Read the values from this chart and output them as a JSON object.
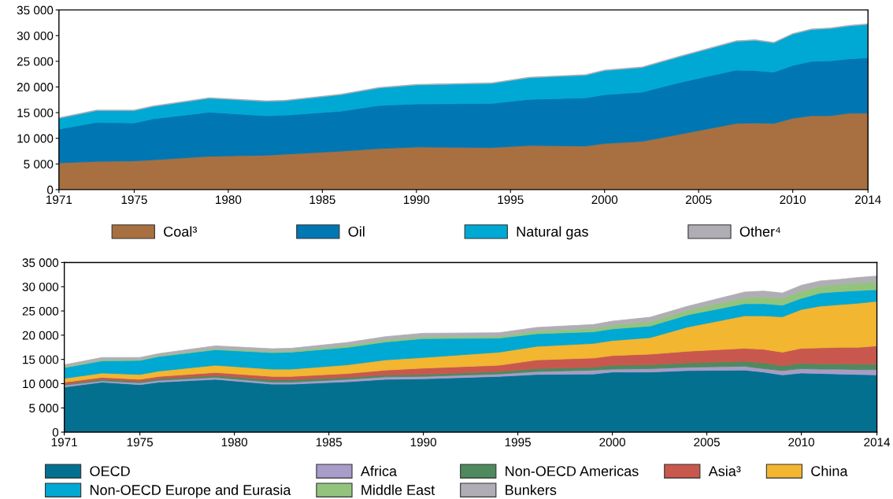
{
  "chart_data": [
    {
      "type": "area",
      "stacked": true,
      "legend": "bottom",
      "x": [
        1971,
        1973,
        1975,
        1976,
        1979,
        1982,
        1983,
        1986,
        1988,
        1990,
        1994,
        1996,
        1999,
        2000,
        2002,
        2004,
        2007,
        2008,
        2009,
        2010,
        2011,
        2012,
        2013,
        2014
      ],
      "series": [
        {
          "name": "Coal³",
          "color": "#a87040",
          "values": [
            5200,
            5500,
            5600,
            5800,
            6500,
            6700,
            6900,
            7500,
            8000,
            8300,
            8200,
            8600,
            8500,
            9000,
            9400,
            10800,
            12900,
            13000,
            12900,
            13900,
            14400,
            14400,
            14900,
            14900
          ]
        },
        {
          "name": "Oil",
          "color": "#0077b3",
          "values": [
            6600,
            7600,
            7400,
            8000,
            8600,
            7700,
            7600,
            7800,
            8400,
            8400,
            8600,
            9000,
            9400,
            9500,
            9600,
            10100,
            10400,
            10200,
            10000,
            10300,
            10600,
            10700,
            10600,
            10800
          ]
        },
        {
          "name": "Natural gas",
          "color": "#00a9d4",
          "values": [
            2100,
            2300,
            2400,
            2400,
            2700,
            2800,
            2800,
            3200,
            3400,
            3700,
            3900,
            4200,
            4400,
            4700,
            4800,
            5000,
            5600,
            5900,
            5700,
            6100,
            6200,
            6300,
            6400,
            6500
          ]
        },
        {
          "name": "Other⁴",
          "color": "#b0aeb4",
          "values": [
            100,
            100,
            100,
            100,
            100,
            100,
            100,
            100,
            100,
            100,
            100,
            100,
            100,
            100,
            100,
            100,
            100,
            100,
            100,
            100,
            100,
            100,
            100,
            100
          ]
        }
      ],
      "xlim": [
        1971,
        2014
      ],
      "xticks": [
        1971,
        1975,
        1980,
        1985,
        1990,
        1995,
        2000,
        2005,
        2010,
        2014
      ],
      "ylim": [
        0,
        35000
      ],
      "yticks": [
        0,
        {
          "value": 5000,
          "label": "5 000"
        },
        {
          "value": 10000,
          "label": "10 000"
        },
        {
          "value": 15000,
          "label": "15 000"
        },
        {
          "value": 20000,
          "label": "20 000"
        },
        {
          "value": 25000,
          "label": "25 000"
        },
        {
          "value": 30000,
          "label": "30 000"
        },
        {
          "value": 35000,
          "label": "35 000"
        }
      ]
    },
    {
      "type": "area",
      "stacked": true,
      "legend": "bottom",
      "x": [
        1971,
        1973,
        1975,
        1976,
        1979,
        1982,
        1983,
        1986,
        1988,
        1990,
        1994,
        1996,
        1999,
        2000,
        2002,
        2004,
        2007,
        2008,
        2009,
        2010,
        2011,
        2012,
        2013,
        2014
      ],
      "series": [
        {
          "name": "OECD",
          "color": "#04708f",
          "values": [
            9300,
            10300,
            9800,
            10300,
            10900,
            9900,
            9900,
            10400,
            10900,
            11000,
            11500,
            11900,
            12000,
            12400,
            12400,
            12700,
            12800,
            12400,
            11800,
            12200,
            12100,
            12000,
            11900,
            11800
          ]
        },
        {
          "name": "Africa",
          "color": "#a89cc8",
          "values": [
            400,
            300,
            400,
            400,
            400,
            400,
            400,
            500,
            500,
            500,
            500,
            600,
            800,
            600,
            700,
            700,
            800,
            700,
            900,
            900,
            900,
            1000,
            1000,
            1100
          ]
        },
        {
          "name": "Non-OECD Americas",
          "color": "#4e8a5e",
          "values": [
            200,
            300,
            300,
            300,
            400,
            500,
            500,
            400,
            400,
            400,
            500,
            600,
            600,
            800,
            800,
            900,
            1000,
            1200,
            1000,
            1100,
            1100,
            1100,
            1100,
            1100
          ]
        },
        {
          "name": "Asia³",
          "color": "#c8584e",
          "values": [
            400,
            400,
            400,
            500,
            600,
            700,
            700,
            800,
            1000,
            1300,
            1300,
            1800,
            1900,
            2000,
            2200,
            2400,
            2700,
            2800,
            2800,
            3100,
            3300,
            3400,
            3500,
            3800
          ]
        },
        {
          "name": "China",
          "color": "#f2b631",
          "values": [
            800,
            900,
            1000,
            1100,
            1500,
            1500,
            1500,
            1800,
            2100,
            2200,
            2700,
            2800,
            3000,
            3100,
            3400,
            5000,
            6700,
            6900,
            7300,
            8000,
            8600,
            8800,
            9100,
            9200
          ]
        },
        {
          "name": "Non-OECD Europe and Eurasia",
          "color": "#00a8d4",
          "values": [
            2200,
            2500,
            2900,
            3000,
            3200,
            3400,
            3500,
            3600,
            3700,
            3900,
            2900,
            2600,
            2400,
            2400,
            2400,
            2500,
            2500,
            2500,
            2400,
            2300,
            2700,
            2700,
            2600,
            2400
          ]
        },
        {
          "name": "Middle East",
          "color": "#93c47d",
          "values": [
            200,
            200,
            200,
            200,
            200,
            300,
            300,
            400,
            500,
            400,
            400,
            600,
            700,
            800,
            900,
            1000,
            1200,
            1400,
            1400,
            1500,
            1400,
            1500,
            1600,
            1600
          ]
        },
        {
          "name": "Bunkers",
          "color": "#b0aeb4",
          "values": [
            400,
            500,
            400,
            400,
            600,
            500,
            500,
            600,
            600,
            700,
            700,
            700,
            800,
            800,
            900,
            800,
            1200,
            1200,
            1100,
            1200,
            1100,
            1000,
            1100,
            1200
          ]
        }
      ],
      "xlim": [
        1971,
        2014
      ],
      "xticks": [
        1971,
        1975,
        1980,
        1985,
        1990,
        1995,
        2000,
        2005,
        2010,
        2014
      ],
      "ylim": [
        0,
        35000
      ],
      "yticks": [
        0,
        {
          "value": 5000,
          "label": "5 000"
        },
        {
          "value": 10000,
          "label": "10 000"
        },
        {
          "value": 15000,
          "label": "15 000"
        },
        {
          "value": 20000,
          "label": "20 000"
        },
        {
          "value": 25000,
          "label": "25 000"
        },
        {
          "value": 30000,
          "label": "30 000"
        },
        {
          "value": 35000,
          "label": "35 000"
        }
      ]
    }
  ]
}
